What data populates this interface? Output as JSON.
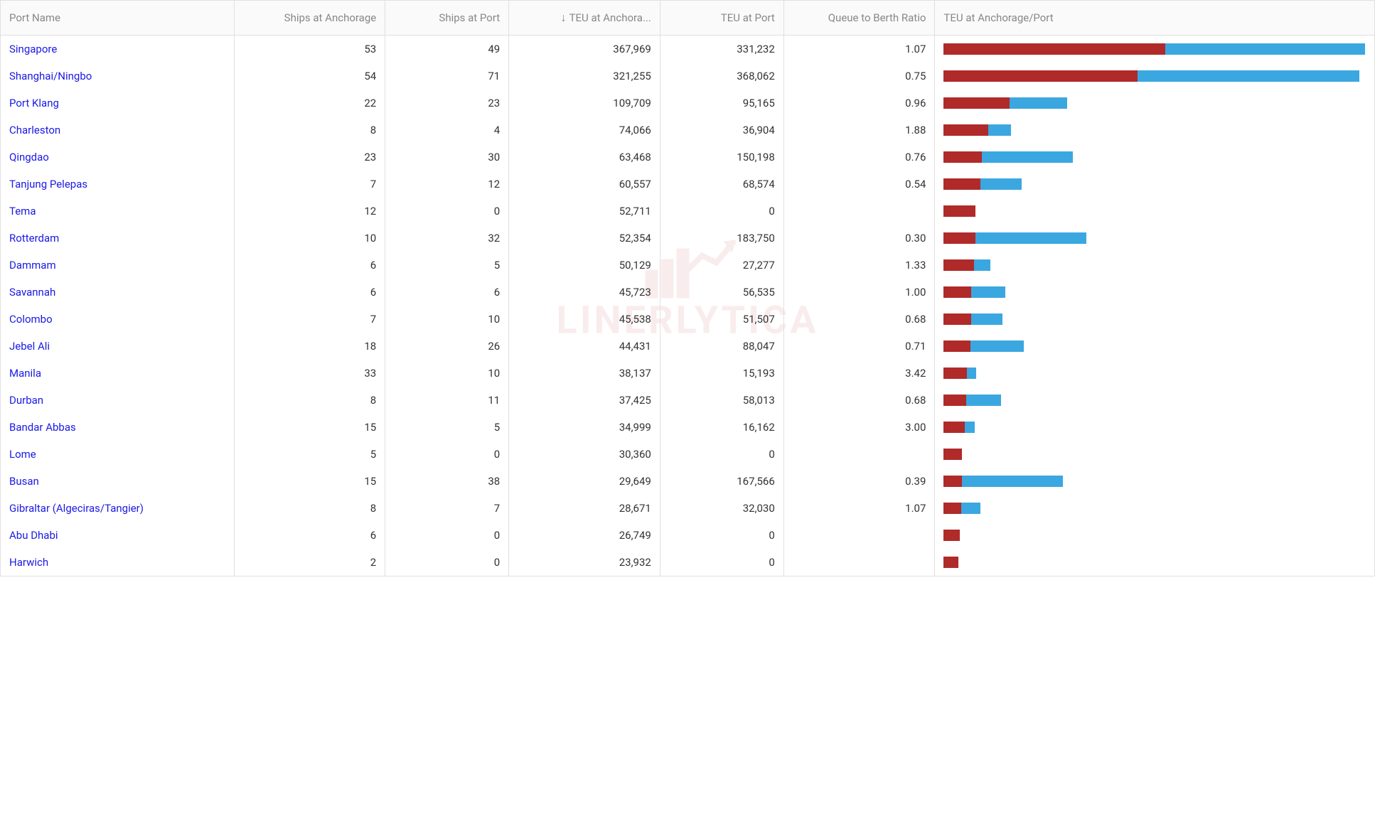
{
  "columns": {
    "port_name": "Port Name",
    "ships_anchorage": "Ships at Anchorage",
    "ships_port": "Ships at Port",
    "teu_anchorage": "TEU at Anchora...",
    "teu_port": "TEU at Port",
    "queue_ratio": "Queue to Berth Ratio",
    "teu_bar": "TEU at Anchorage/Port"
  },
  "sort_indicator": "↓",
  "column_widths": {
    "port_name": "17%",
    "ships_anchorage": "11%",
    "ships_port": "9%",
    "teu_anchorage": "11%",
    "teu_port": "9%",
    "queue_ratio": "11%",
    "teu_bar": "32%"
  },
  "bar_chart": {
    "anchorage_color": "#b02a2a",
    "port_color": "#3ba7e0",
    "max_total": 700000
  },
  "watermark_text": "LINERLYTICA",
  "rows": [
    {
      "port": "Singapore",
      "ships_anch": "53",
      "ships_port": "49",
      "teu_anch": "367,969",
      "teu_port": "331,232",
      "ratio": "1.07",
      "teu_anch_n": 367969,
      "teu_port_n": 331232
    },
    {
      "port": "Shanghai/Ningbo",
      "ships_anch": "54",
      "ships_port": "71",
      "teu_anch": "321,255",
      "teu_port": "368,062",
      "ratio": "0.75",
      "teu_anch_n": 321255,
      "teu_port_n": 368062
    },
    {
      "port": "Port Klang",
      "ships_anch": "22",
      "ships_port": "23",
      "teu_anch": "109,709",
      "teu_port": "95,165",
      "ratio": "0.96",
      "teu_anch_n": 109709,
      "teu_port_n": 95165
    },
    {
      "port": "Charleston",
      "ships_anch": "8",
      "ships_port": "4",
      "teu_anch": "74,066",
      "teu_port": "36,904",
      "ratio": "1.88",
      "teu_anch_n": 74066,
      "teu_port_n": 36904
    },
    {
      "port": "Qingdao",
      "ships_anch": "23",
      "ships_port": "30",
      "teu_anch": "63,468",
      "teu_port": "150,198",
      "ratio": "0.76",
      "teu_anch_n": 63468,
      "teu_port_n": 150198
    },
    {
      "port": "Tanjung Pelepas",
      "ships_anch": "7",
      "ships_port": "12",
      "teu_anch": "60,557",
      "teu_port": "68,574",
      "ratio": "0.54",
      "teu_anch_n": 60557,
      "teu_port_n": 68574
    },
    {
      "port": "Tema",
      "ships_anch": "12",
      "ships_port": "0",
      "teu_anch": "52,711",
      "teu_port": "0",
      "ratio": "",
      "teu_anch_n": 52711,
      "teu_port_n": 0
    },
    {
      "port": "Rotterdam",
      "ships_anch": "10",
      "ships_port": "32",
      "teu_anch": "52,354",
      "teu_port": "183,750",
      "ratio": "0.30",
      "teu_anch_n": 52354,
      "teu_port_n": 183750
    },
    {
      "port": "Dammam",
      "ships_anch": "6",
      "ships_port": "5",
      "teu_anch": "50,129",
      "teu_port": "27,277",
      "ratio": "1.33",
      "teu_anch_n": 50129,
      "teu_port_n": 27277
    },
    {
      "port": "Savannah",
      "ships_anch": "6",
      "ships_port": "6",
      "teu_anch": "45,723",
      "teu_port": "56,535",
      "ratio": "1.00",
      "teu_anch_n": 45723,
      "teu_port_n": 56535
    },
    {
      "port": "Colombo",
      "ships_anch": "7",
      "ships_port": "10",
      "teu_anch": "45,538",
      "teu_port": "51,507",
      "ratio": "0.68",
      "teu_anch_n": 45538,
      "teu_port_n": 51507
    },
    {
      "port": "Jebel Ali",
      "ships_anch": "18",
      "ships_port": "26",
      "teu_anch": "44,431",
      "teu_port": "88,047",
      "ratio": "0.71",
      "teu_anch_n": 44431,
      "teu_port_n": 88047
    },
    {
      "port": "Manila",
      "ships_anch": "33",
      "ships_port": "10",
      "teu_anch": "38,137",
      "teu_port": "15,193",
      "ratio": "3.42",
      "teu_anch_n": 38137,
      "teu_port_n": 15193
    },
    {
      "port": "Durban",
      "ships_anch": "8",
      "ships_port": "11",
      "teu_anch": "37,425",
      "teu_port": "58,013",
      "ratio": "0.68",
      "teu_anch_n": 37425,
      "teu_port_n": 58013
    },
    {
      "port": "Bandar Abbas",
      "ships_anch": "15",
      "ships_port": "5",
      "teu_anch": "34,999",
      "teu_port": "16,162",
      "ratio": "3.00",
      "teu_anch_n": 34999,
      "teu_port_n": 16162
    },
    {
      "port": "Lome",
      "ships_anch": "5",
      "ships_port": "0",
      "teu_anch": "30,360",
      "teu_port": "0",
      "ratio": "",
      "teu_anch_n": 30360,
      "teu_port_n": 0
    },
    {
      "port": "Busan",
      "ships_anch": "15",
      "ships_port": "38",
      "teu_anch": "29,649",
      "teu_port": "167,566",
      "ratio": "0.39",
      "teu_anch_n": 29649,
      "teu_port_n": 167566
    },
    {
      "port": "Gibraltar (Algeciras/Tangier)",
      "ships_anch": "8",
      "ships_port": "7",
      "teu_anch": "28,671",
      "teu_port": "32,030",
      "ratio": "1.07",
      "teu_anch_n": 28671,
      "teu_port_n": 32030
    },
    {
      "port": "Abu Dhabi",
      "ships_anch": "6",
      "ships_port": "0",
      "teu_anch": "26,749",
      "teu_port": "0",
      "ratio": "",
      "teu_anch_n": 26749,
      "teu_port_n": 0
    },
    {
      "port": "Harwich",
      "ships_anch": "2",
      "ships_port": "0",
      "teu_anch": "23,932",
      "teu_port": "0",
      "ratio": "",
      "teu_anch_n": 23932,
      "teu_port_n": 0
    }
  ]
}
